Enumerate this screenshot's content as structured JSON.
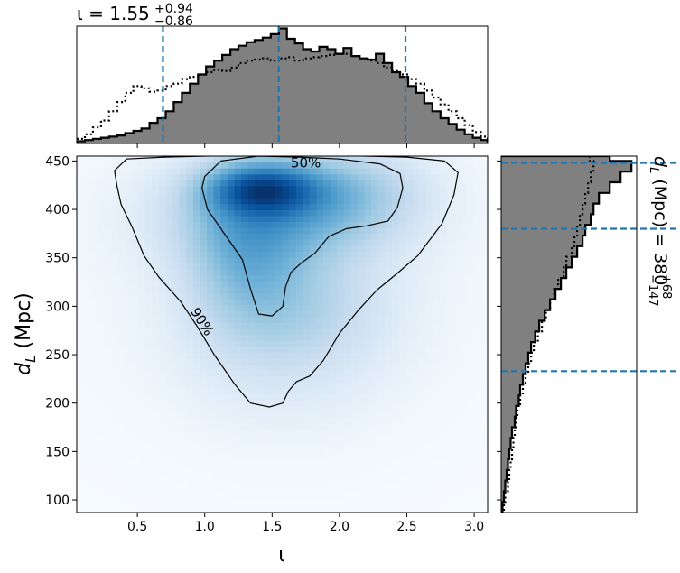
{
  "chart_data": [
    {
      "name": "joint-density",
      "type": "heatmap",
      "xlabel": "ι",
      "ylabel_symbol": "d",
      "ylabel_sub": "L",
      "ylabel_unit": "(Mpc)",
      "xlim": [
        0.05,
        3.1
      ],
      "ylim": [
        87,
        455
      ],
      "x_ticks": [
        0.5,
        1.0,
        1.5,
        2.0,
        2.5,
        3.0
      ],
      "x_tick_labels": [
        "0.5",
        "1.0",
        "1.5",
        "2.0",
        "2.5",
        "3.0"
      ],
      "y_ticks": [
        100,
        150,
        200,
        250,
        300,
        350,
        400,
        450
      ],
      "y_tick_labels": [
        "100",
        "150",
        "200",
        "250",
        "300",
        "350",
        "400",
        "450"
      ],
      "colormap": [
        "#f7fbff",
        "#deebf7",
        "#c6dbef",
        "#9ecae1",
        "#6baed6",
        "#4292c6",
        "#2171b5",
        "#08519c",
        "#08306b"
      ],
      "peak": {
        "x": 1.42,
        "y": 422
      },
      "contours": [
        {
          "label": "50%",
          "label_at": {
            "x": 1.75,
            "y": 448
          },
          "points": [
            [
              1.0,
              434
            ],
            [
              1.12,
              450
            ],
            [
              1.4,
              455
            ],
            [
              1.7,
              454
            ],
            [
              2.0,
              452
            ],
            [
              2.3,
              447
            ],
            [
              2.45,
              437
            ],
            [
              2.47,
              422
            ],
            [
              2.43,
              402
            ],
            [
              2.36,
              388
            ],
            [
              2.2,
              383
            ],
            [
              2.05,
              380
            ],
            [
              1.92,
              372
            ],
            [
              1.82,
              355
            ],
            [
              1.72,
              345
            ],
            [
              1.64,
              335
            ],
            [
              1.6,
              320
            ],
            [
              1.58,
              300
            ],
            [
              1.5,
              290
            ],
            [
              1.4,
              292
            ],
            [
              1.34,
              318
            ],
            [
              1.28,
              348
            ],
            [
              1.15,
              374
            ],
            [
              1.02,
              400
            ],
            [
              0.98,
              422
            ],
            [
              1.0,
              434
            ]
          ]
        },
        {
          "label": "90%",
          "label_at": {
            "x": 0.98,
            "y": 284
          },
          "points": [
            [
              0.35,
              423
            ],
            [
              0.33,
              440
            ],
            [
              0.42,
              452
            ],
            [
              0.7,
              454
            ],
            [
              1.0,
              455
            ],
            [
              1.4,
              456
            ],
            [
              1.8,
              456
            ],
            [
              2.2,
              455
            ],
            [
              2.5,
              454
            ],
            [
              2.78,
              450
            ],
            [
              2.88,
              438
            ],
            [
              2.85,
              415
            ],
            [
              2.76,
              385
            ],
            [
              2.58,
              352
            ],
            [
              2.42,
              333
            ],
            [
              2.28,
              317
            ],
            [
              2.14,
              296
            ],
            [
              2.0,
              272
            ],
            [
              1.88,
              244
            ],
            [
              1.78,
              228
            ],
            [
              1.68,
              222
            ],
            [
              1.62,
              212
            ],
            [
              1.58,
              200
            ],
            [
              1.48,
              196
            ],
            [
              1.34,
              200
            ],
            [
              1.22,
              220
            ],
            [
              1.07,
              250
            ],
            [
              0.94,
              280
            ],
            [
              0.82,
              305
            ],
            [
              0.66,
              330
            ],
            [
              0.55,
              352
            ],
            [
              0.46,
              382
            ],
            [
              0.38,
              405
            ],
            [
              0.35,
              423
            ]
          ]
        }
      ]
    },
    {
      "name": "iota-marginal",
      "type": "histogram",
      "title": "ι = 1.55",
      "title_main": "ι = 1.55",
      "title_sup": "+0.94",
      "title_sub": "−0.86",
      "xlim": [
        0.05,
        3.1
      ],
      "bin_edges": [
        0.05,
        0.11,
        0.17,
        0.23,
        0.29,
        0.35,
        0.41,
        0.47,
        0.53,
        0.59,
        0.65,
        0.71,
        0.77,
        0.83,
        0.89,
        0.95,
        1.01,
        1.07,
        1.13,
        1.19,
        1.25,
        1.31,
        1.37,
        1.43,
        1.49,
        1.55,
        1.61,
        1.67,
        1.73,
        1.79,
        1.85,
        1.91,
        1.97,
        2.03,
        2.09,
        2.15,
        2.21,
        2.27,
        2.33,
        2.39,
        2.45,
        2.51,
        2.57,
        2.63,
        2.69,
        2.75,
        2.81,
        2.87,
        2.93,
        2.99,
        3.05,
        3.1
      ],
      "posterior": [
        2,
        3,
        4,
        5,
        6,
        7,
        9,
        11,
        13,
        18,
        22,
        28,
        36,
        44,
        52,
        60,
        67,
        72,
        77,
        82,
        85,
        88,
        90,
        92,
        95,
        100,
        91,
        87,
        82,
        80,
        84,
        82,
        78,
        83,
        76,
        74,
        73,
        78,
        70,
        62,
        58,
        50,
        44,
        35,
        28,
        22,
        17,
        12,
        8,
        5,
        3
      ],
      "prior": [
        4,
        8,
        14,
        20,
        28,
        36,
        44,
        50,
        48,
        45,
        46,
        50,
        52,
        56,
        58,
        60,
        62,
        64,
        63,
        66,
        70,
        72,
        73,
        74,
        72,
        74,
        75,
        72,
        74,
        75,
        76,
        77,
        78,
        78,
        76,
        74,
        72,
        70,
        66,
        63,
        60,
        56,
        52,
        46,
        40,
        34,
        28,
        22,
        16,
        10,
        6
      ],
      "quantile_lines": [
        0.69,
        1.55,
        2.49
      ]
    },
    {
      "name": "distance-marginal",
      "type": "histogram",
      "orientation": "horizontal",
      "title": "d_L (Mpc) = 380",
      "title_main_symbol": "d",
      "title_main_sub": "L",
      "title_main_rest": " (Mpc) = 380",
      "title_sup": "+68",
      "title_sub": "−147",
      "ylim": [
        87,
        455
      ],
      "bin_edges": [
        87,
        98,
        109,
        120,
        131,
        142,
        153,
        164,
        175,
        186,
        197,
        208,
        219,
        230,
        241,
        252,
        263,
        274,
        285,
        296,
        307,
        318,
        329,
        340,
        351,
        362,
        373,
        384,
        395,
        406,
        417,
        428,
        439,
        450,
        455
      ],
      "posterior": [
        1,
        2,
        3,
        4,
        5,
        6,
        7,
        8,
        10,
        11,
        13,
        14,
        16,
        18,
        20,
        22,
        25,
        28,
        32,
        36,
        40,
        44,
        48,
        52,
        56,
        60,
        62,
        66,
        68,
        72,
        80,
        88,
        96,
        80
      ],
      "prior": [
        2,
        3,
        5,
        6,
        7,
        8,
        9,
        10,
        11,
        12,
        14,
        16,
        18,
        20,
        22,
        24,
        27,
        30,
        33,
        36,
        39,
        42,
        46,
        48,
        52,
        54,
        56,
        58,
        60,
        62,
        64,
        66,
        68,
        65
      ],
      "quantile_lines": [
        233,
        380,
        448
      ]
    }
  ]
}
